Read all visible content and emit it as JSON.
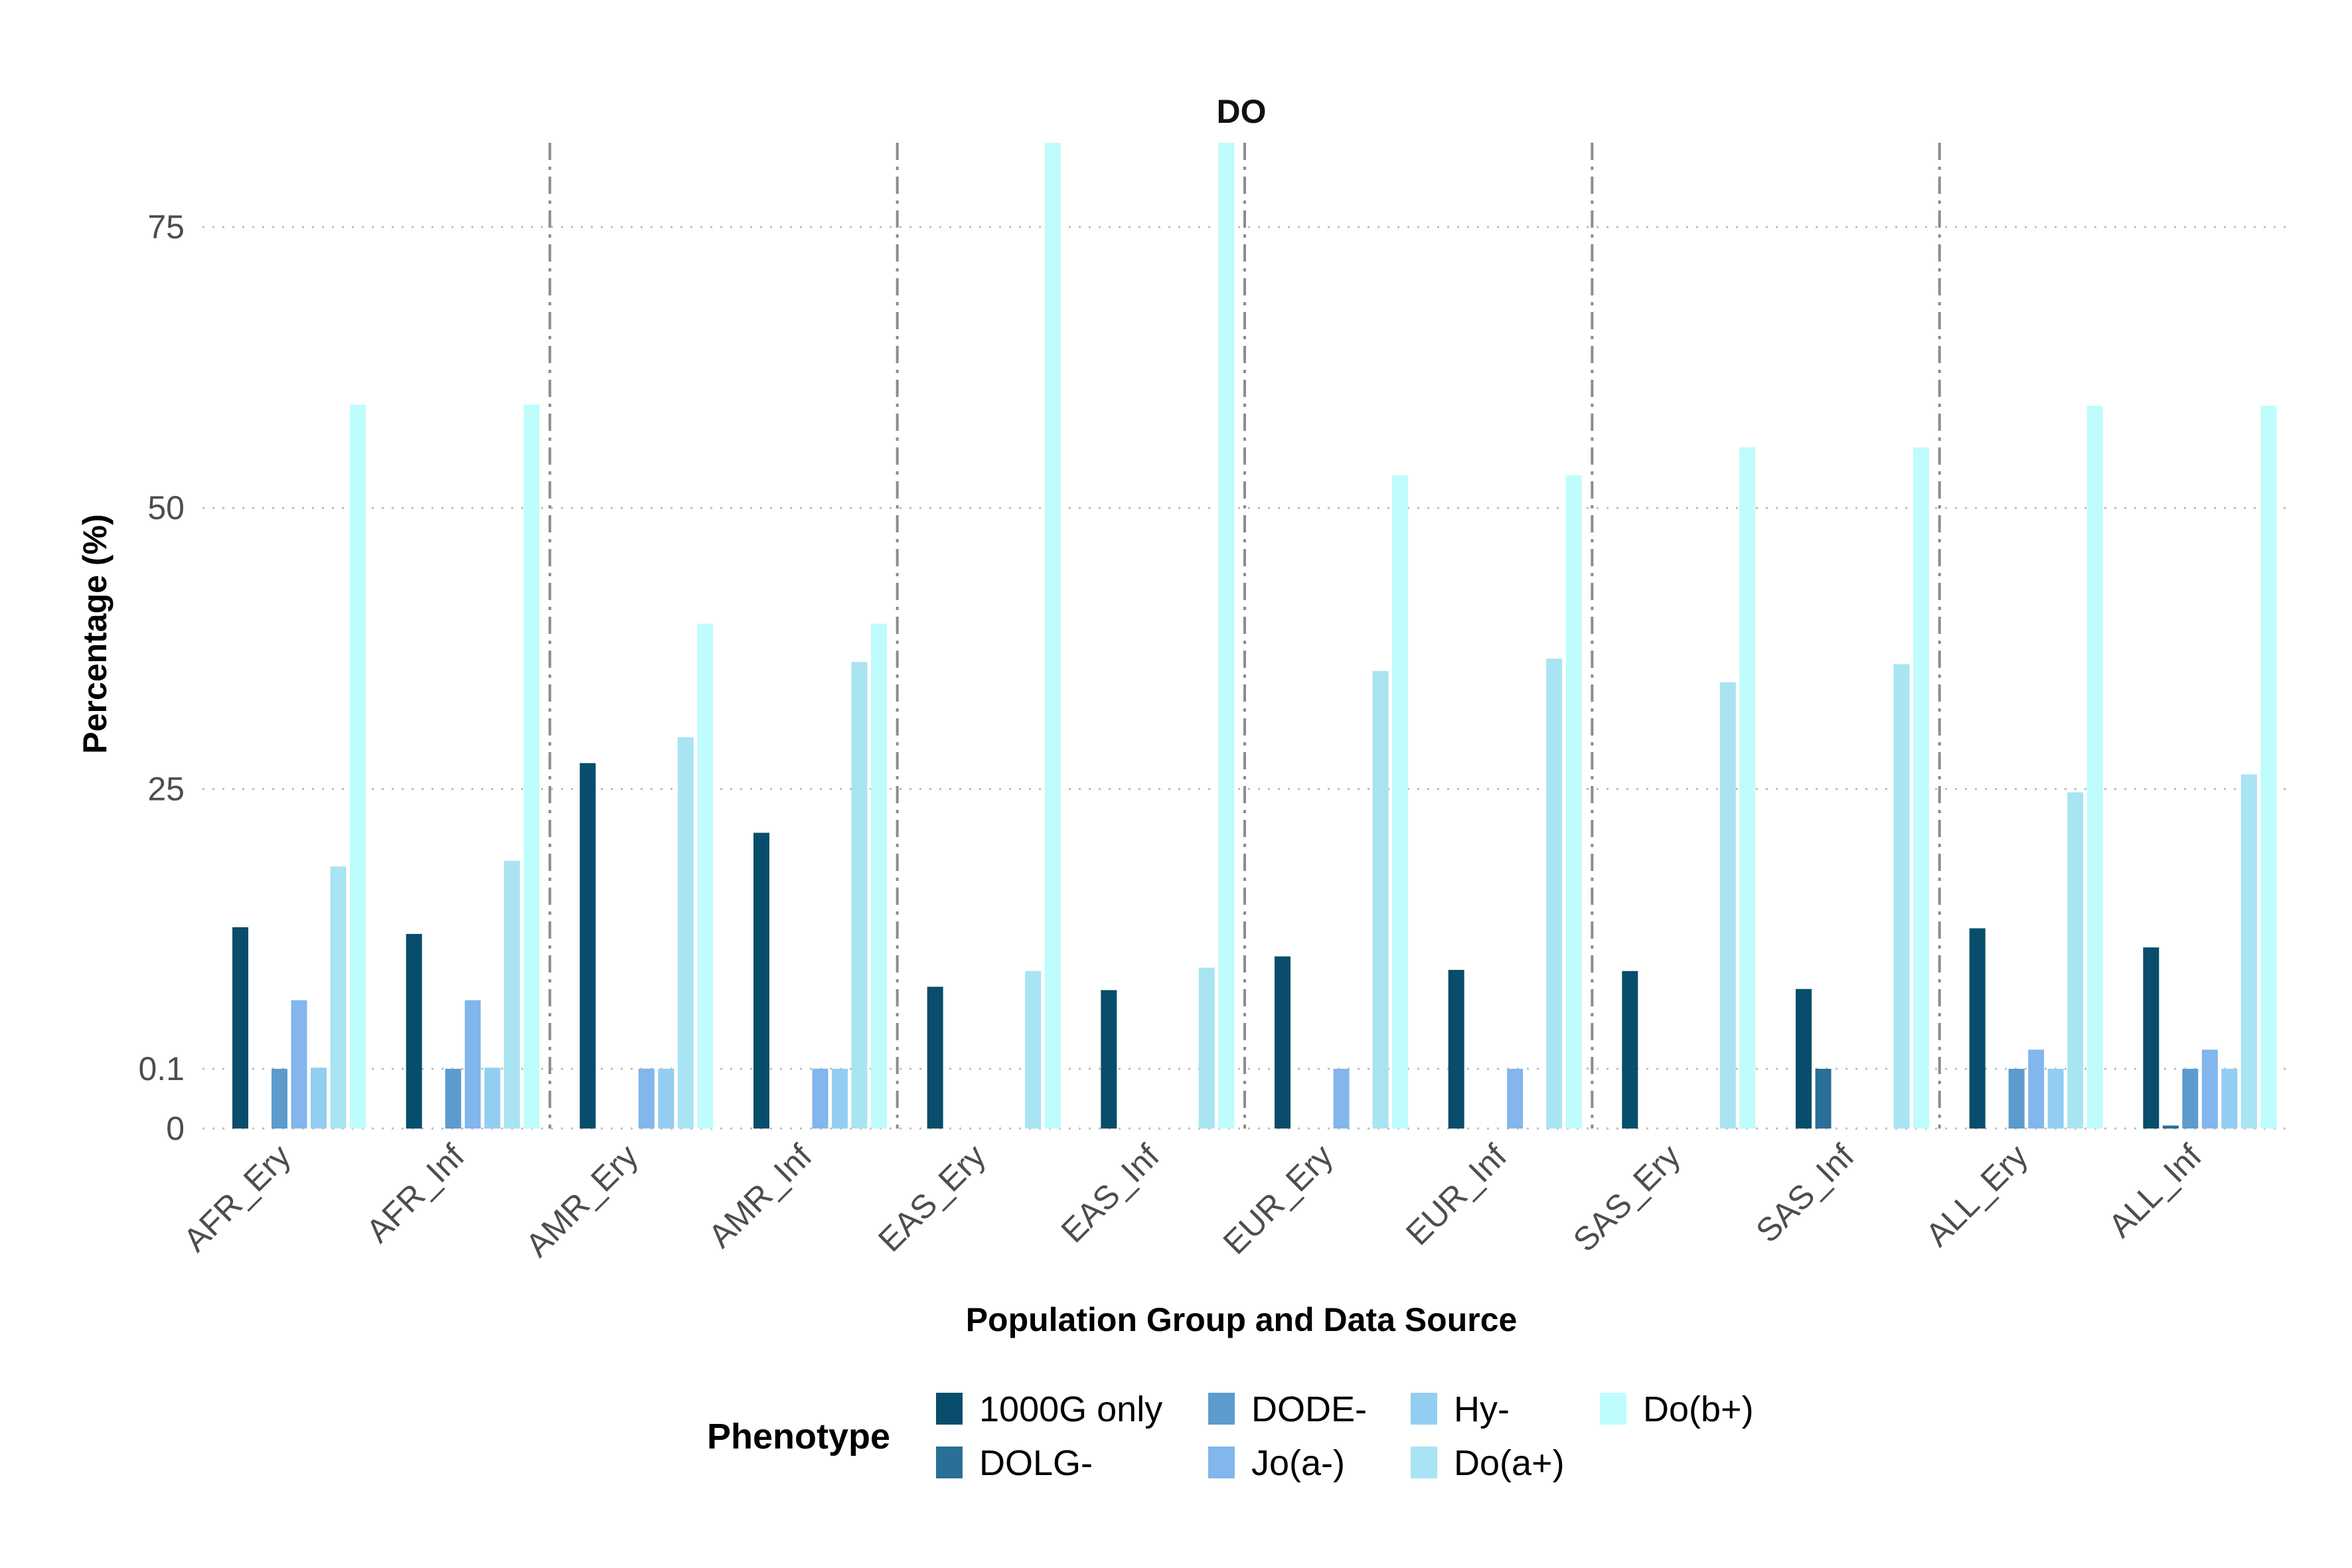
{
  "chart_data": {
    "type": "bar",
    "title": "DO",
    "xlabel": "Population Group and Data Source",
    "ylabel": "Percentage (%)",
    "yscale": "piecewise: 0 to 0.1 expanded, 0.1 to 82.5 linear",
    "ylim": [
      0,
      82.5
    ],
    "yticks": [
      0,
      0.1,
      25,
      50,
      75
    ],
    "ytick_labels": [
      "0",
      "0.1",
      "25",
      "50",
      "75"
    ],
    "grid": "horizontal dotted",
    "group_separators": "dash-dot vertical lines between population groups",
    "legend": {
      "title": "Phenotype",
      "placement": "bottom",
      "order": [
        "1000G only",
        "DOLG-",
        "DODE-",
        "Jo(a-)",
        "Hy-",
        "Do(a+)",
        "Do(b+)"
      ]
    },
    "categories": [
      "AFR_Ery",
      "AFR_Inf",
      "AMR_Ery",
      "AMR_Inf",
      "EAS_Ery",
      "EAS_Inf",
      "EUR_Ery",
      "EUR_Inf",
      "SAS_Ery",
      "SAS_Inf",
      "ALL_Ery",
      "ALL_Inf"
    ],
    "series": [
      {
        "name": "1000G only",
        "color": "#084d6b",
        "values": [
          12.7,
          12.1,
          27.3,
          21.1,
          7.4,
          7.1,
          10.1,
          8.9,
          8.8,
          7.2,
          12.6,
          10.9
        ]
      },
      {
        "name": "DOLG-",
        "color": "#2a6f97",
        "values": [
          null,
          null,
          null,
          null,
          null,
          null,
          null,
          null,
          null,
          0.1,
          null,
          0.005
        ]
      },
      {
        "name": "DODE-",
        "color": "#5d9bce",
        "values": [
          0.1,
          0.1,
          null,
          null,
          null,
          null,
          null,
          null,
          null,
          null,
          0.1,
          0.1
        ]
      },
      {
        "name": "Jo(a-)",
        "color": "#82b6ec",
        "values": [
          6.2,
          6.2,
          0.11,
          0.11,
          null,
          null,
          0.1,
          0.1,
          null,
          null,
          1.8,
          1.8
        ]
      },
      {
        "name": "Hy-",
        "color": "#93cdf1",
        "values": [
          0.2,
          0.2,
          0.1,
          0.1,
          null,
          null,
          null,
          null,
          null,
          null,
          0.1,
          0.1
        ]
      },
      {
        "name": "Do(a+)",
        "color": "#a8e4f2",
        "values": [
          18.1,
          18.6,
          29.6,
          36.3,
          8.8,
          9.1,
          35.5,
          36.6,
          34.5,
          36.1,
          24.7,
          26.3
        ]
      },
      {
        "name": "Do(b+)",
        "color": "#bffcfc",
        "values": [
          59.2,
          59.2,
          39.7,
          39.7,
          82.5,
          82.5,
          52.9,
          52.9,
          55.4,
          55.4,
          59.1,
          59.1
        ]
      }
    ]
  }
}
